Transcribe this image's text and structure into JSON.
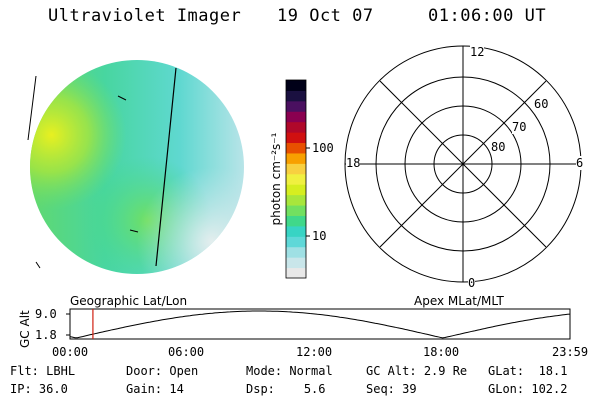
{
  "header": {
    "title": "Ultraviolet Imager",
    "date": "19 Oct 07",
    "time": "01:06:00 UT"
  },
  "colorbar": {
    "unit_label": "photon cm⁻²s⁻¹",
    "ticks": [
      "100",
      "10"
    ],
    "colors": [
      "#e8e8e8",
      "#c9e6ea",
      "#9fe0e4",
      "#5fd8d8",
      "#38d4c4",
      "#40d88a",
      "#72e060",
      "#a8e63c",
      "#d6ee20",
      "#f0f040",
      "#f8d040",
      "#f8a000",
      "#e85000",
      "#d01010",
      "#b0082a",
      "#8a0050",
      "#4a1060",
      "#1a1040",
      "#000018"
    ]
  },
  "polar_grid": {
    "mlt_labels": {
      "top": "12",
      "left": "18",
      "right": "6",
      "bottom": "0"
    },
    "lat_labels": [
      "60",
      "70",
      "80"
    ]
  },
  "plot_labels": {
    "left_caption": "Geographic Lat/Lon",
    "right_caption": "Apex MLat/MLT"
  },
  "altitude_plot": {
    "y_axis_label": "GC Alt",
    "y_ticks": [
      "9.0",
      "1.8"
    ],
    "x_ticks": [
      "00:00",
      "06:00",
      "12:00",
      "18:00",
      "23:59"
    ],
    "current_time_marker": "01:06",
    "colors": {
      "marker": "#d02010"
    }
  },
  "info": {
    "flt_label": "Flt:",
    "flt_value": "LBHL",
    "door_label": "Door:",
    "door_value": "Open",
    "mode_label": "Mode:",
    "mode_value": "Normal",
    "gcalt_label": "GC Alt:",
    "gcalt_value": "2.9 Re",
    "glat_label": "GLat:",
    "glat_value": "18.1",
    "ip_label": "IP:",
    "ip_value": "36.0",
    "gain_label": "Gain:",
    "gain_value": "14",
    "dsp_label": "Dsp:",
    "dsp_value": "5.6",
    "seq_label": "Seq:",
    "seq_value": "39",
    "glon_label": "GLon:",
    "glon_value": "102.2"
  }
}
